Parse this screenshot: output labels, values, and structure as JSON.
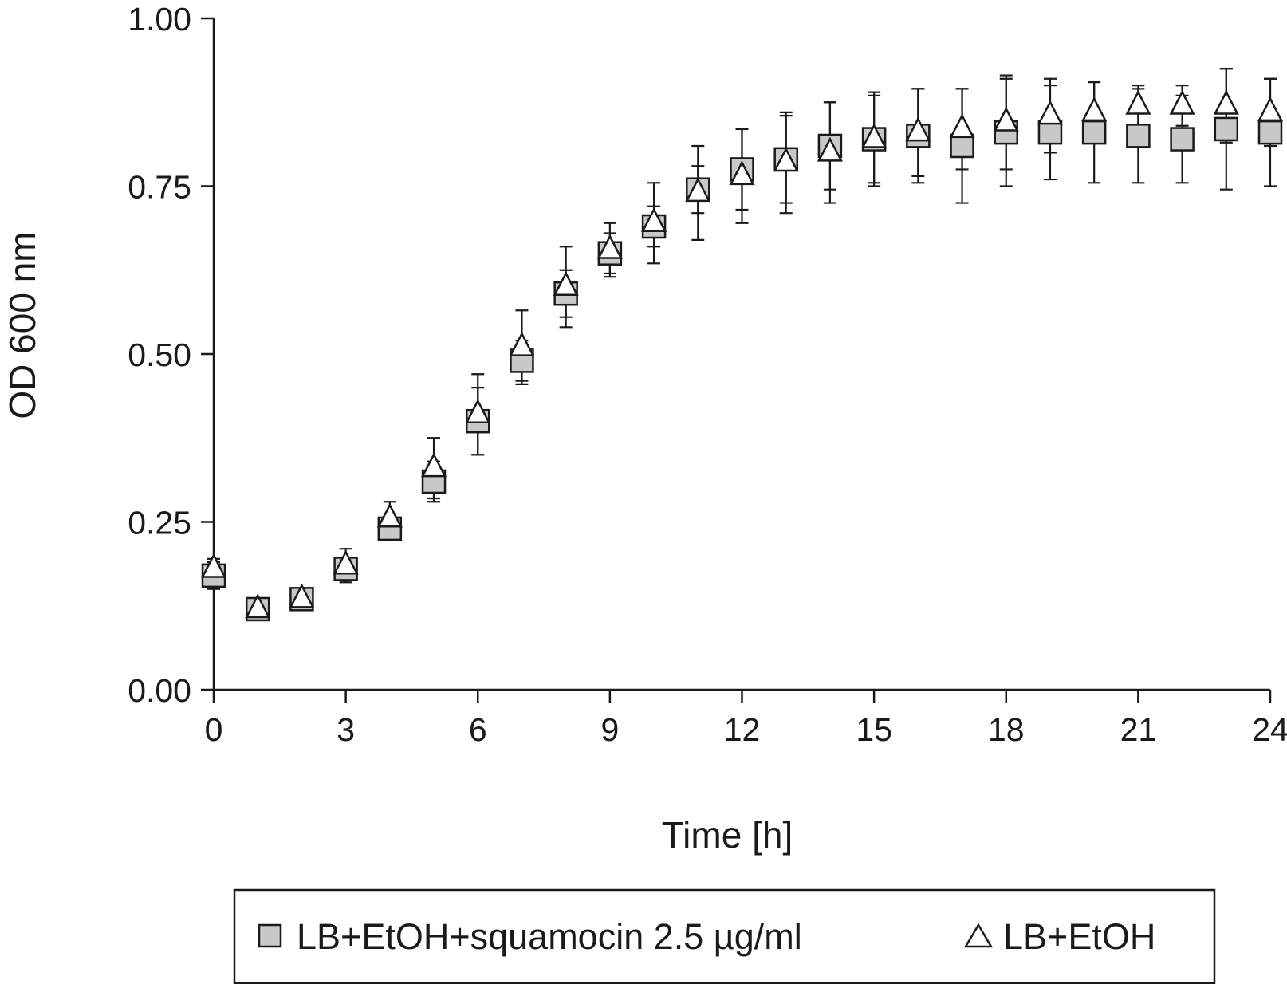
{
  "chart_data": {
    "type": "scatter",
    "xlabel": "Time [h]",
    "ylabel": "OD 600 nm",
    "xlim": [
      0,
      24
    ],
    "ylim": [
      0,
      1
    ],
    "x_ticks": [
      "0",
      "3",
      "6",
      "9",
      "12",
      "15",
      "18",
      "21",
      "24"
    ],
    "y_ticks": [
      "0.00",
      "0.25",
      "0.50",
      "0.75",
      "1.00"
    ],
    "grid": false,
    "legend_position": "bottom",
    "series": [
      {
        "name": "LB+EtOH+squamocin 2.5 µg/ml",
        "marker": "square",
        "color": "#c8c8c8",
        "x": [
          0,
          1,
          2,
          3,
          4,
          5,
          6,
          7,
          8,
          9,
          10,
          11,
          12,
          13,
          14,
          15,
          16,
          17,
          18,
          19,
          20,
          21,
          22,
          23,
          24
        ],
        "y": [
          0.17,
          0.12,
          0.135,
          0.18,
          0.24,
          0.31,
          0.4,
          0.49,
          0.59,
          0.65,
          0.69,
          0.745,
          0.775,
          0.79,
          0.81,
          0.82,
          0.825,
          0.81,
          0.83,
          0.83,
          0.83,
          0.825,
          0.82,
          0.835,
          0.83
        ],
        "err": [
          0.02,
          0.0,
          0.0,
          0.015,
          0.0,
          0.03,
          0.05,
          0.03,
          0.035,
          0.03,
          0.03,
          0.035,
          0.06,
          0.065,
          0.065,
          0.065,
          0.07,
          0.085,
          0.08,
          0.07,
          0.075,
          0.07,
          0.065,
          0.09,
          0.08
        ]
      },
      {
        "name": "LB+EtOH",
        "marker": "triangle",
        "color": "#ffffff",
        "x": [
          0,
          1,
          2,
          3,
          4,
          5,
          6,
          7,
          8,
          9,
          10,
          11,
          12,
          13,
          14,
          15,
          16,
          17,
          18,
          19,
          20,
          21,
          22,
          23,
          24
        ],
        "y": [
          0.18,
          0.12,
          0.135,
          0.185,
          0.255,
          0.33,
          0.41,
          0.51,
          0.6,
          0.655,
          0.695,
          0.74,
          0.765,
          0.785,
          0.8,
          0.82,
          0.83,
          0.835,
          0.845,
          0.855,
          0.86,
          0.87,
          0.87,
          0.87,
          0.86
        ],
        "err": [
          0.015,
          0.0,
          0.0,
          0.025,
          0.025,
          0.045,
          0.06,
          0.055,
          0.06,
          0.04,
          0.06,
          0.07,
          0.07,
          0.075,
          0.075,
          0.07,
          0.065,
          0.06,
          0.07,
          0.055,
          0.045,
          0.03,
          0.03,
          0.055,
          0.05
        ]
      }
    ]
  }
}
